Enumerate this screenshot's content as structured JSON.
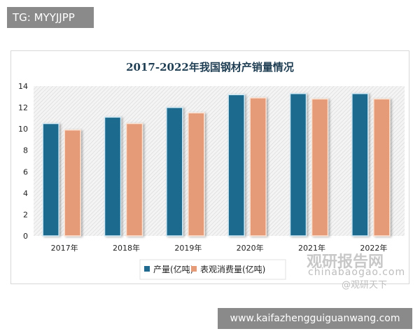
{
  "watermarks": {
    "tg": "TG: MYYJJPP",
    "site": "www.kaifazhengguiguanwang.com",
    "logo": "观研报告网",
    "logo_url": "chinabaogao.com",
    "weibo": "@观研天下"
  },
  "chart_data": {
    "type": "bar",
    "title": "2017-2022年我国钢材产销量情况",
    "categories": [
      "2017年",
      "2018年",
      "2019年",
      "2020年",
      "2021年",
      "2022年"
    ],
    "series": [
      {
        "name": "产量(亿吨)",
        "color": "#1f6a8e",
        "values": [
          10.5,
          11.1,
          12.0,
          13.2,
          13.3,
          13.3
        ]
      },
      {
        "name": "表观消费量(亿吨)",
        "color": "#e59b78",
        "values": [
          9.9,
          10.5,
          11.5,
          12.9,
          12.8,
          12.8
        ]
      }
    ],
    "ylim": [
      0,
      14
    ],
    "yticks": [
      0,
      2,
      4,
      6,
      8,
      10,
      12,
      14
    ],
    "grid": false,
    "background": "hatched",
    "legend": "bottom"
  }
}
